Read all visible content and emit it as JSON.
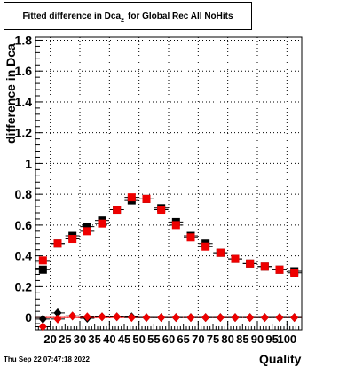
{
  "title": {
    "main": "Fitted difference in Dca",
    "sub": "z",
    "rest": "for Global Rec All NoHits"
  },
  "timestamp": "Thu Sep 22 07:47:18 2022",
  "chart_data": {
    "type": "scatter",
    "title": "Fitted difference in Dca_z for Global Rec All NoHits",
    "xlabel": "Quality",
    "ylabel": "difference in Dca",
    "xlim": [
      15,
      105
    ],
    "ylim": [
      -0.08,
      1.82
    ],
    "grid": true,
    "x_ticks": [
      20,
      30,
      40,
      50,
      60,
      70,
      80,
      90,
      100
    ],
    "x_tick_labels": [
      "20",
      "25",
      "30",
      "35",
      "40",
      "45",
      "50",
      "55",
      "60",
      "65",
      "70",
      "75",
      "80",
      "85",
      "90",
      "95",
      "100"
    ],
    "x_tick_values": [
      20,
      25,
      30,
      35,
      40,
      45,
      50,
      55,
      60,
      65,
      70,
      75,
      80,
      85,
      90,
      95,
      100
    ],
    "y_ticks": [
      0,
      0.2,
      0.4,
      0.6,
      0.8,
      1,
      1.2,
      1.4,
      1.6,
      1.8
    ],
    "y_tick_labels": [
      "0",
      "0.2",
      "0.4",
      "0.6",
      "0.8",
      "1",
      "1.2",
      "1.4",
      "1.6",
      "1.8"
    ],
    "colors": {
      "black": "#000000",
      "red": "#ee0000",
      "zero_line": "#ff0000"
    },
    "x": [
      17.5,
      22.5,
      27.5,
      32.5,
      37.5,
      42.5,
      47.5,
      52.5,
      57.5,
      62.5,
      67.5,
      72.5,
      77.5,
      82.5,
      87.5,
      92.5,
      97.5,
      102.5
    ],
    "series": [
      {
        "marker": "square",
        "color": "#000000",
        "values": [
          0.31,
          0.48,
          0.53,
          0.59,
          0.63,
          0.7,
          0.76,
          0.77,
          0.71,
          0.62,
          0.53,
          0.48,
          0.42,
          0.38,
          0.35,
          0.33,
          0.31,
          0.3
        ]
      },
      {
        "marker": "square",
        "color": "#ee0000",
        "values": [
          0.37,
          0.48,
          0.51,
          0.56,
          0.61,
          0.7,
          0.78,
          0.77,
          0.7,
          0.6,
          0.52,
          0.46,
          0.42,
          0.38,
          0.35,
          0.33,
          0.31,
          0.29
        ]
      },
      {
        "marker": "diamond",
        "color": "#000000",
        "values": [
          -0.01,
          0.03,
          0.01,
          -0.005,
          0.005,
          0.005,
          0.005,
          0.0,
          0.0,
          0.0,
          0.0,
          0.0,
          0.0,
          0.0,
          0.0,
          0.0,
          0.0,
          0.0
        ]
      },
      {
        "marker": "diamond",
        "color": "#ee0000",
        "values": [
          -0.06,
          -0.01,
          0.01,
          0.005,
          0.005,
          0.005,
          0.0,
          0.0,
          0.0,
          0.0,
          0.0,
          0.0,
          0.0,
          0.0,
          0.0,
          0.0,
          0.0,
          0.0
        ]
      }
    ]
  }
}
